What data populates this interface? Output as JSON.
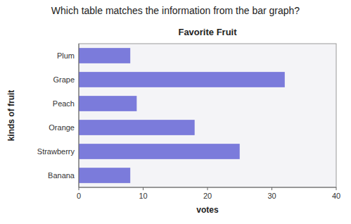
{
  "chart_data": {
    "type": "bar",
    "orientation": "horizontal",
    "subtitle": "Which table matches the information from the bar graph?",
    "title": "Favorite Fruit",
    "categories": [
      "Plum",
      "Grape",
      "Peach",
      "Orange",
      "Strawberry",
      "Banana"
    ],
    "values": [
      8,
      32,
      9,
      18,
      25,
      8
    ],
    "color": "#7b7bdb",
    "xlabel": "votes",
    "ylabel": "kinds of fruit",
    "xlim": [
      0,
      40
    ],
    "xticks": [
      0,
      10,
      20,
      30,
      40
    ],
    "grid": false
  }
}
